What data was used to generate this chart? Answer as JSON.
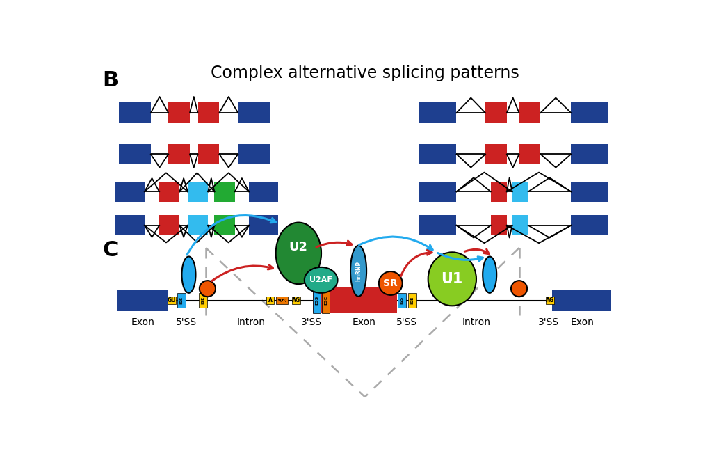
{
  "title_B": "Complex alternative splicing patterns",
  "label_B": "B",
  "label_C": "C",
  "bg_color": "#ffffff",
  "dark_blue": "#1e3f8f",
  "red_exon": "#cc2222",
  "cyan_exon": "#33bbee",
  "green_exon": "#22aa33",
  "yellow_box": "#ffcc00",
  "orange_box": "#ee7700",
  "orange_circle": "#ee5500",
  "green_U2": "#228833",
  "teal_U2AF": "#22aa88",
  "blue_hnRNP": "#3399cc",
  "lime_U1": "#88cc22",
  "cyan_color": "#22aaee",
  "red_color": "#cc2222",
  "gray_dash": "#aaaaaa"
}
